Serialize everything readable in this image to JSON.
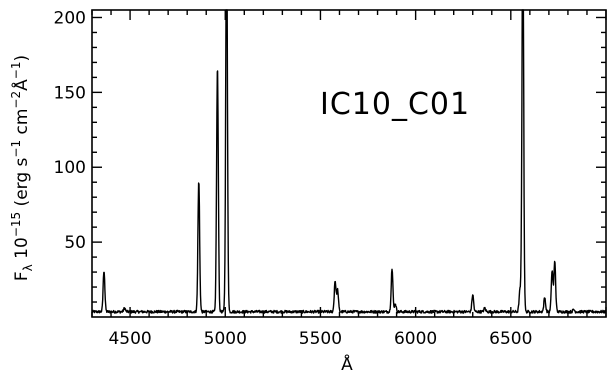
{
  "chart_data": {
    "type": "line",
    "title": "",
    "xlabel": "Å",
    "ylabel": "F_λ 10^-15 (erg s^-1 cm^-2 Å^-1)",
    "xlim": [
      4300,
      7000
    ],
    "ylim": [
      0,
      205
    ],
    "x_ticks": [
      4500,
      5000,
      5500,
      6000,
      6500
    ],
    "y_ticks": [
      50,
      100,
      150,
      200
    ],
    "grid": false,
    "annotation": "IC10_C01",
    "series": [
      {
        "name": "",
        "baseline": 3.5,
        "emission_lines": [
          {
            "x": 4363,
            "peak": 31
          },
          {
            "x": 4471,
            "peak": 6
          },
          {
            "x": 4861,
            "peak": 91
          },
          {
            "x": 4959,
            "peak": 168
          },
          {
            "x": 5007,
            "peak": 260
          },
          {
            "x": 5577,
            "peak": 24
          },
          {
            "x": 5590,
            "peak": 18
          },
          {
            "x": 5876,
            "peak": 32
          },
          {
            "x": 5893,
            "peak": 9
          },
          {
            "x": 6300,
            "peak": 15
          },
          {
            "x": 6363,
            "peak": 6
          },
          {
            "x": 6548,
            "peak": 18
          },
          {
            "x": 6563,
            "peak": 260
          },
          {
            "x": 6678,
            "peak": 13
          },
          {
            "x": 6717,
            "peak": 31
          },
          {
            "x": 6731,
            "peak": 37
          },
          {
            "x": 6830,
            "peak": 5
          }
        ]
      }
    ]
  }
}
